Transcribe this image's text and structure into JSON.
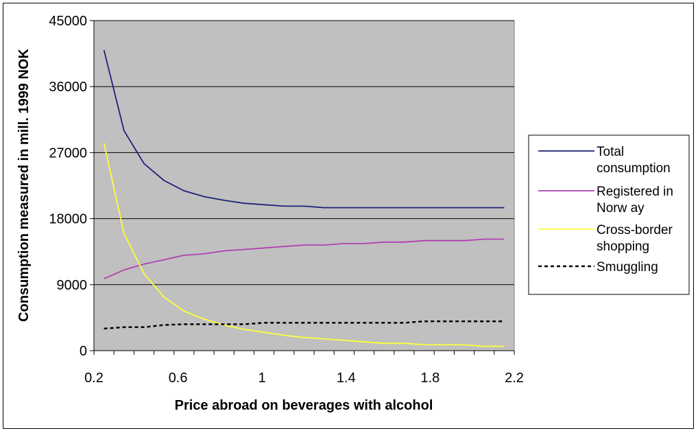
{
  "chart_data": {
    "type": "line",
    "title": "",
    "xlabel": "Price abroad on beverages with alcohol",
    "ylabel": "Consumption measured in mill. 1999 NOK",
    "xlim": [
      0.2,
      2.2
    ],
    "ylim": [
      0,
      45000
    ],
    "x_ticks": [
      "0.2",
      "0.6",
      "1",
      "1.4",
      "1.8",
      "2.2"
    ],
    "y_ticks": [
      "0",
      "9000",
      "18000",
      "27000",
      "36000",
      "45000"
    ],
    "grid": "horizontal",
    "legend_position": "right",
    "x": [
      0.2,
      0.3,
      0.4,
      0.5,
      0.6,
      0.7,
      0.8,
      0.9,
      1.0,
      1.1,
      1.2,
      1.3,
      1.4,
      1.5,
      1.6,
      1.7,
      1.8,
      1.9,
      2.0,
      2.1,
      2.2
    ],
    "series": [
      {
        "name": "Total consumption",
        "legend_lines": [
          "Total",
          "consumption"
        ],
        "color": "#1f1f7a",
        "dash": "",
        "values": [
          41000,
          30000,
          25500,
          23200,
          21800,
          21000,
          20500,
          20100,
          19900,
          19700,
          19700,
          19500,
          19500,
          19500,
          19500,
          19500,
          19500,
          19500,
          19500,
          19500,
          19500
        ]
      },
      {
        "name": "Registered in Norway",
        "legend_lines": [
          "Registered in",
          "Norw ay"
        ],
        "color": "#b13fb1",
        "dash": "",
        "values": [
          9800,
          11000,
          11800,
          12400,
          13000,
          13200,
          13600,
          13800,
          14000,
          14200,
          14400,
          14400,
          14600,
          14600,
          14800,
          14800,
          15000,
          15000,
          15000,
          15200,
          15200
        ]
      },
      {
        "name": "Cross-border shopping",
        "legend_lines": [
          "Cross-border",
          "shopping"
        ],
        "color": "#ffff3a",
        "dash": "",
        "values": [
          28300,
          16000,
          10500,
          7300,
          5400,
          4300,
          3500,
          2900,
          2500,
          2100,
          1800,
          1600,
          1400,
          1200,
          1000,
          1000,
          800,
          800,
          800,
          600,
          600
        ]
      },
      {
        "name": "Smuggling",
        "legend_lines": [
          "Smuggling"
        ],
        "color": "#000000",
        "dash": "5,4",
        "values": [
          3000,
          3200,
          3200,
          3500,
          3600,
          3600,
          3600,
          3600,
          3800,
          3800,
          3800,
          3800,
          3800,
          3800,
          3800,
          3800,
          4000,
          4000,
          4000,
          4000,
          4000
        ]
      }
    ]
  }
}
